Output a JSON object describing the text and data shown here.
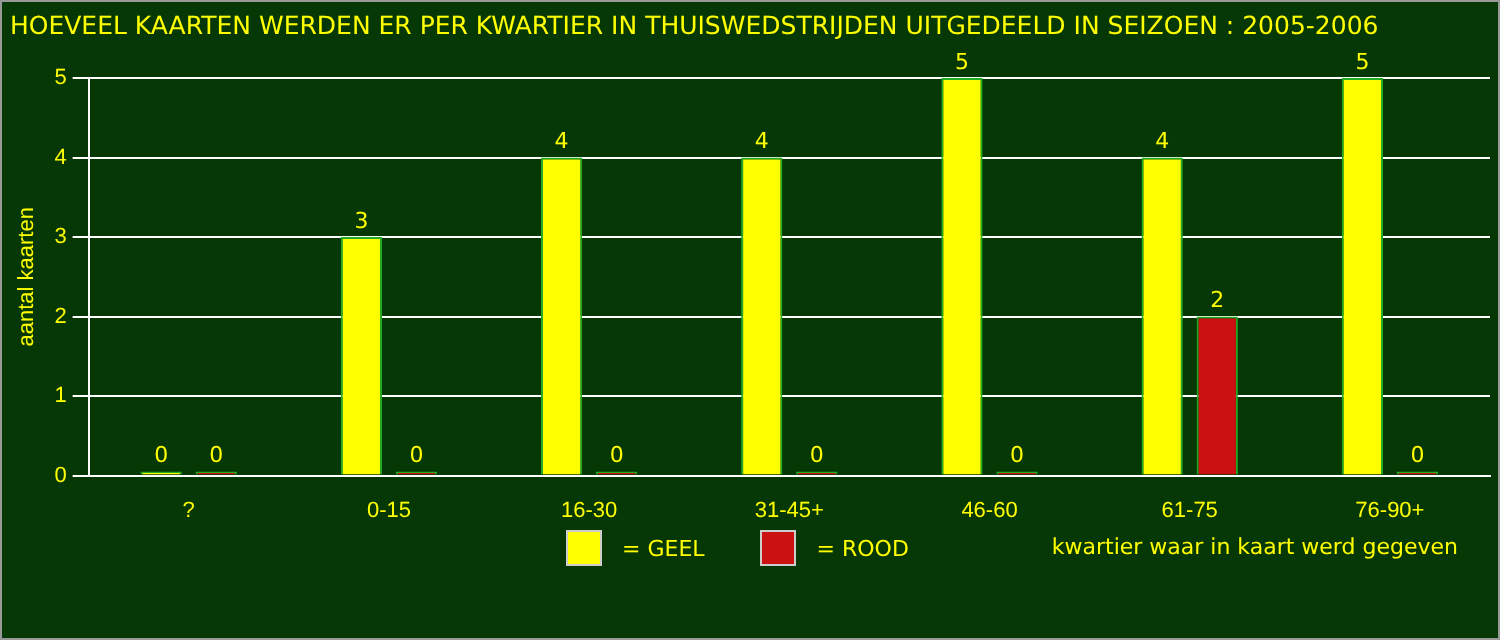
{
  "chart_data": {
    "type": "bar",
    "title": "HOEVEEL KAARTEN WERDEN ER PER KWARTIER IN THUISWEDSTRIJDEN UITGEDEELD IN SEIZOEN : 2005-2006",
    "xlabel": "kwartier waar in kaart werd gegeven",
    "ylabel": "aantal kaarten",
    "categories": [
      "?",
      "0-15",
      "16-30",
      "31-45+",
      "46-60",
      "61-75",
      "76-90+"
    ],
    "series": [
      {
        "name": "= GEEL",
        "color": "#ffff00",
        "values": [
          0,
          3,
          4,
          4,
          5,
          4,
          5
        ]
      },
      {
        "name": "= ROOD",
        "color": "#cc1111",
        "values": [
          0,
          0,
          0,
          0,
          0,
          2,
          0
        ]
      }
    ],
    "ylim": [
      0,
      5
    ],
    "yticks": [
      0,
      1,
      2,
      3,
      4,
      5
    ],
    "grid": "y",
    "legend": "bottom",
    "data_labels": true
  }
}
